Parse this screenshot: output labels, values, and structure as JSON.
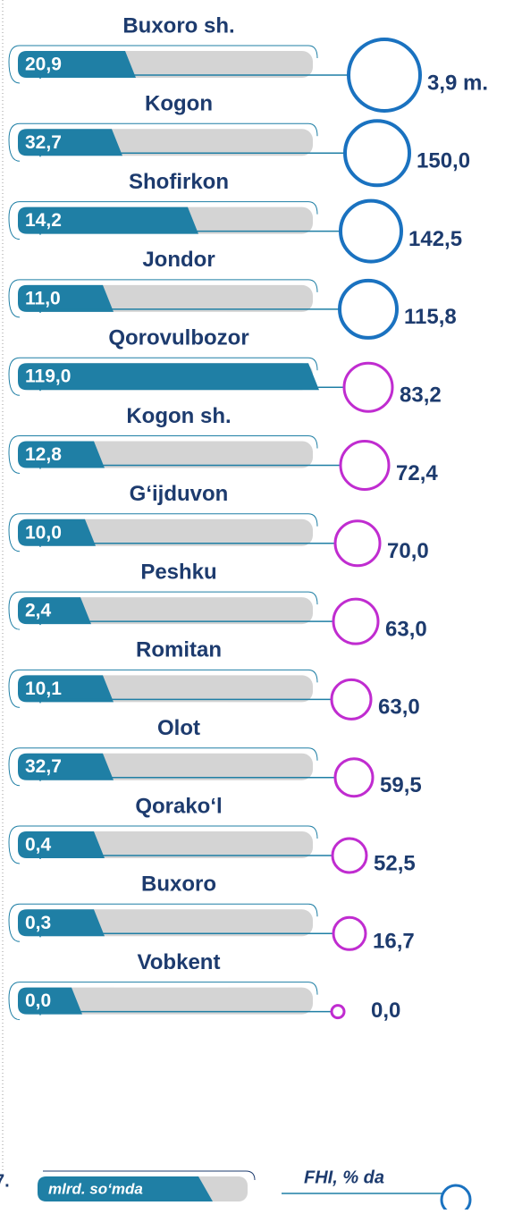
{
  "rows": [
    {
      "name": "Buxoro sh.",
      "amount": "20,9",
      "fhi": "3,9 m."
    },
    {
      "name": "Kogon",
      "amount": "32,7",
      "fhi": "150,0"
    },
    {
      "name": "Shofirkon",
      "amount": "14,2",
      "fhi": "142,5"
    },
    {
      "name": "Jondor",
      "amount": "11,0",
      "fhi": "115,8"
    },
    {
      "name": "Qorovulbozor",
      "amount": "119,0",
      "fhi": "83,2"
    },
    {
      "name": "Kogon sh.",
      "amount": "12,8",
      "fhi": "72,4"
    },
    {
      "name": "G‘ijduvon",
      "amount": "10,0",
      "fhi": "70,0"
    },
    {
      "name": "Peshku",
      "amount": "2,4",
      "fhi": "63,0"
    },
    {
      "name": "Romitan",
      "amount": "10,1",
      "fhi": "63,0"
    },
    {
      "name": "Olot",
      "amount": "32,7",
      "fhi": "59,5"
    },
    {
      "name": "Qorako‘l",
      "amount": "0,4",
      "fhi": "52,5"
    },
    {
      "name": "Buxoro",
      "amount": "0,3",
      "fhi": "16,7"
    },
    {
      "name": "Vobkent",
      "amount": "0,0",
      "fhi": "0,0"
    }
  ],
  "legend": {
    "amount": "mlrd. so‘mda",
    "fhi": "FHI, % da"
  },
  "page_number": "7."
}
